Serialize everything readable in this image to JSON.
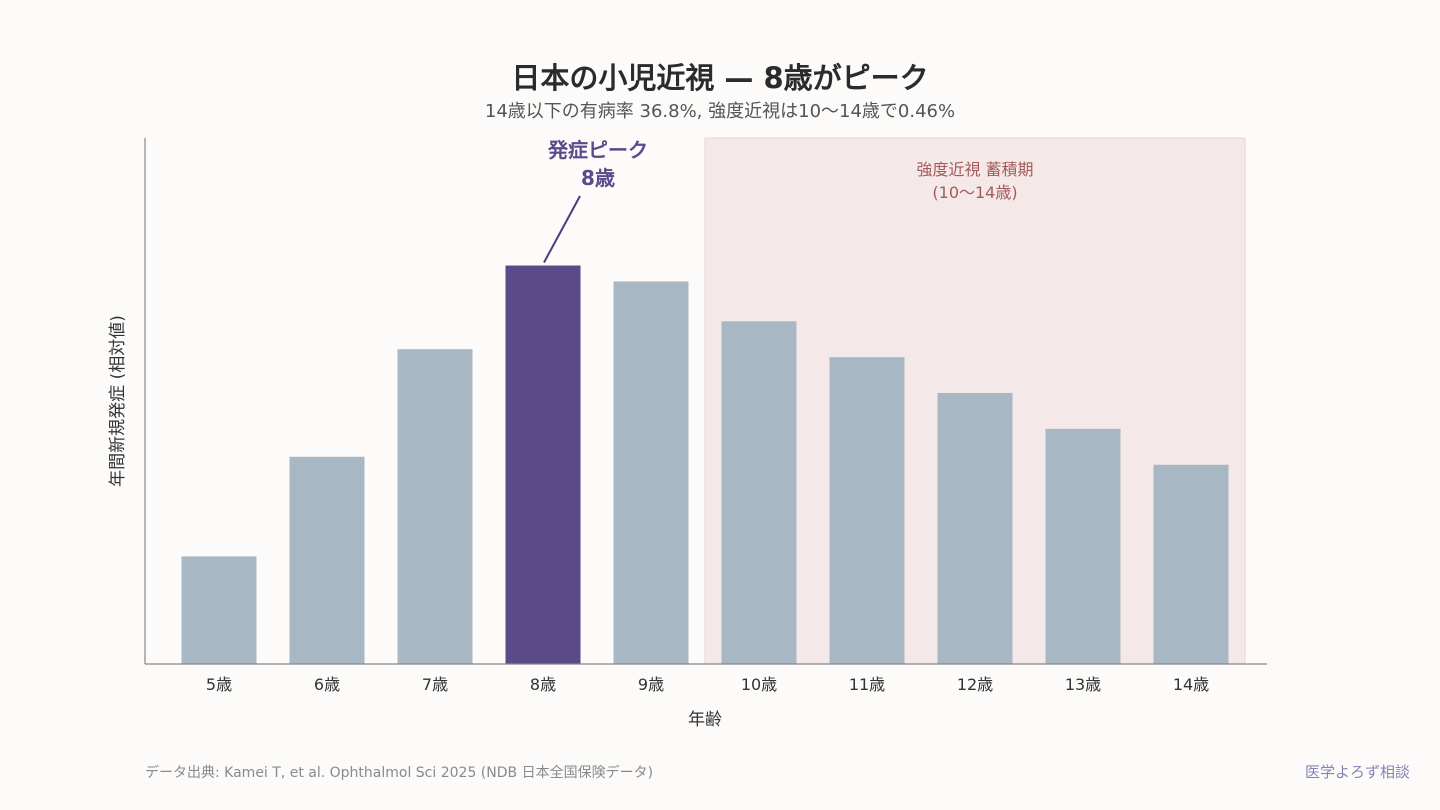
{
  "chart_data": {
    "type": "bar",
    "title": "日本の小児近視 — 8歳がピーク",
    "subtitle": "14歳以下の有病率 36.8%, 強度近視は10〜14歳で0.46%",
    "xlabel": "年齢",
    "ylabel": "年間新規発症 (相対値)",
    "categories": [
      "5歳",
      "6歳",
      "7歳",
      "8歳",
      "9歳",
      "10歳",
      "11歳",
      "12歳",
      "13歳",
      "14歳"
    ],
    "values": [
      27,
      52,
      79,
      100,
      96,
      86,
      77,
      68,
      59,
      50
    ],
    "ylim": [
      0,
      132
    ],
    "highlight_category": "8歳",
    "annotation": {
      "line1": "発症ピーク",
      "line2": "8歳"
    },
    "shaded_region": {
      "from": "10歳",
      "to": "14歳",
      "label_line1": "強度近視 蓄積期",
      "label_line2": "(10〜14歳)"
    },
    "colors": {
      "bar": "#a8b7c4",
      "highlight": "#5b4a8a",
      "region": "#f5e8e8",
      "region_border": "#ecd5d3",
      "axis": "#888888"
    },
    "source": "データ出典: Kamei T, et al. Ophthalmol Sci 2025 (NDB 日本全国保険データ)",
    "brand": "医学よろず相談"
  }
}
